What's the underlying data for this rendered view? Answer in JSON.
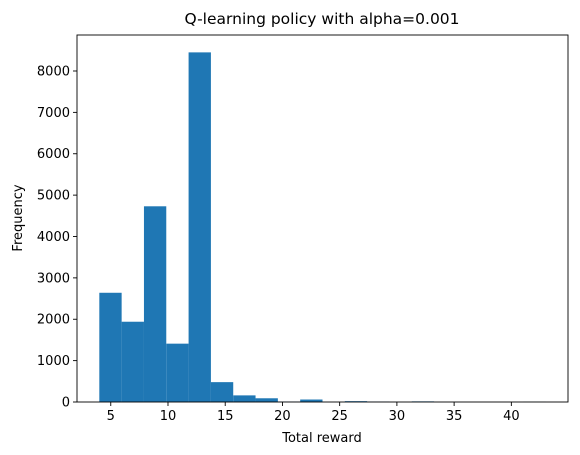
{
  "chart_data": {
    "type": "bar",
    "title": "Q-learning policy with alpha=0.001",
    "xlabel": "Total reward",
    "ylabel": "Frequency",
    "xlim": [
      2.05,
      44.95
    ],
    "ylim": [
      0,
      8870
    ],
    "x_ticks": [
      5,
      10,
      15,
      20,
      25,
      30,
      35,
      40
    ],
    "y_ticks": [
      0,
      1000,
      2000,
      3000,
      4000,
      5000,
      6000,
      7000,
      8000
    ],
    "bin_edges": [
      4,
      5.95,
      7.9,
      9.85,
      11.8,
      13.75,
      15.7,
      17.65,
      19.6,
      21.55,
      23.5,
      25.45,
      27.4,
      29.35,
      31.3,
      33.25,
      35.2,
      37.15,
      39.1,
      41.05,
      43
    ],
    "values": [
      2640,
      1940,
      4730,
      1410,
      8450,
      480,
      160,
      90,
      10,
      60,
      0,
      20,
      10,
      0,
      15,
      0,
      0,
      0,
      0,
      5
    ],
    "color": "#1f77b4"
  }
}
